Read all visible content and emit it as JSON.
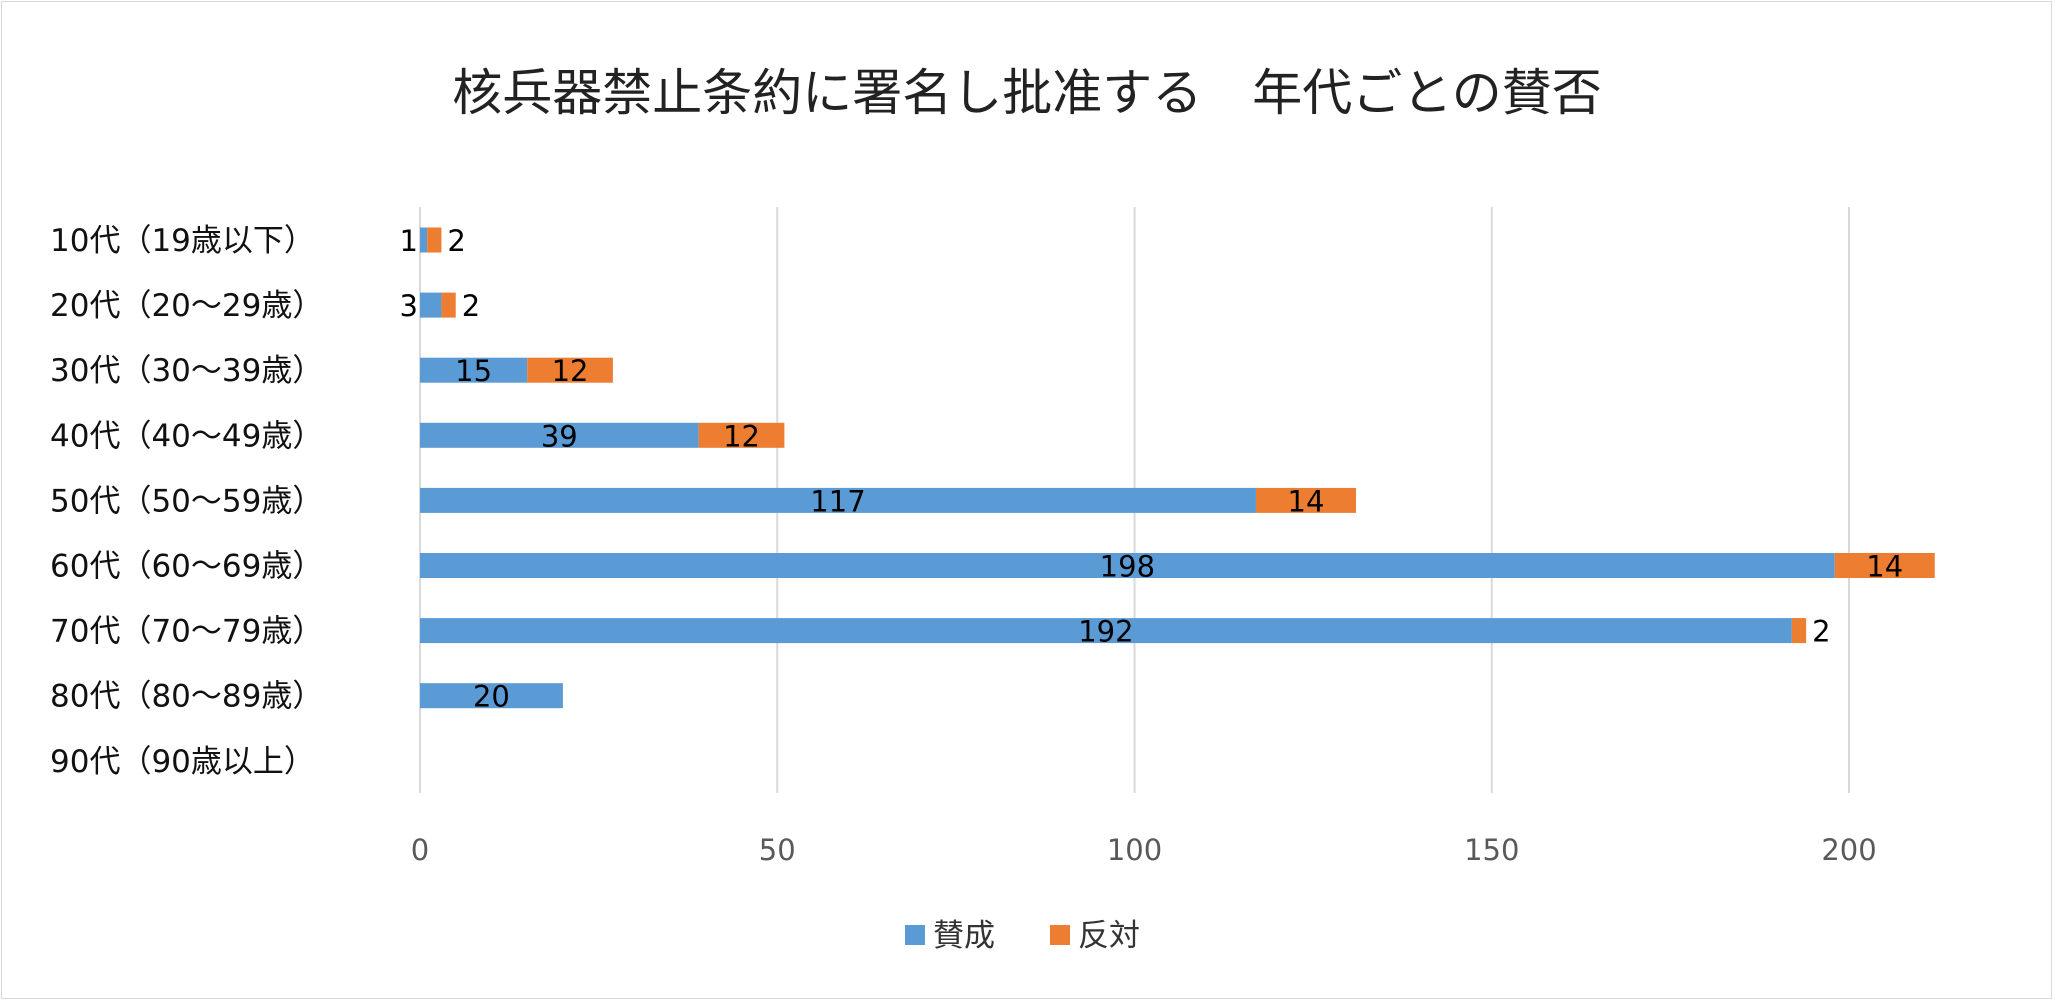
{
  "chart_data": {
    "type": "bar",
    "orientation": "horizontal",
    "stacked": true,
    "title": "核兵器禁止条約に署名し批准する　年代ごとの賛否",
    "categories": [
      "10代（19歳以下）",
      "20代（20〜29歳）",
      "30代（30〜39歳）",
      "40代（40〜49歳）",
      "50代（50〜59歳）",
      "60代（60〜69歳）",
      "70代（70〜79歳）",
      "80代（80〜89歳）",
      "90代（90歳以上）"
    ],
    "series": [
      {
        "name": "賛成",
        "color": "#5B9BD5",
        "values": [
          1,
          3,
          15,
          39,
          117,
          198,
          192,
          20,
          null
        ]
      },
      {
        "name": "反対",
        "color": "#ED7D31",
        "values": [
          2,
          2,
          12,
          12,
          14,
          14,
          2,
          null,
          null
        ]
      }
    ],
    "xlim": [
      0,
      220
    ],
    "xticks": [
      0,
      50,
      100,
      150,
      200
    ],
    "grid": true,
    "legend": "bottom",
    "xlabel": "",
    "ylabel": ""
  }
}
